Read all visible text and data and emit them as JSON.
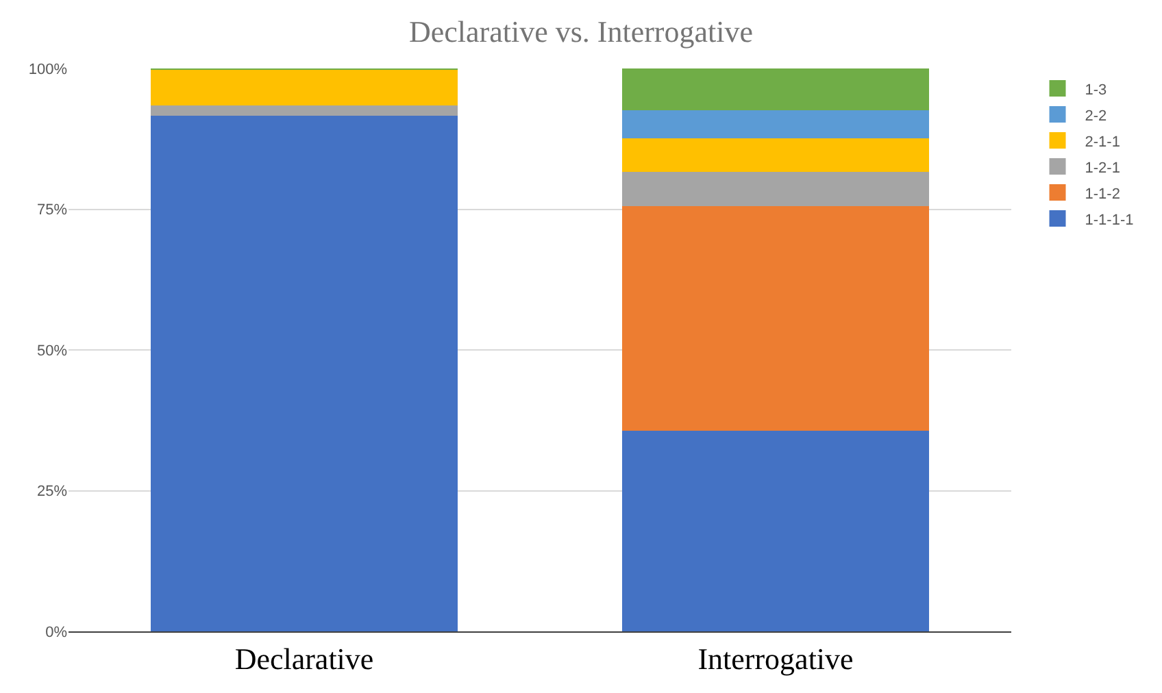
{
  "chart_data": {
    "type": "bar",
    "title": "Declarative vs. Interrogative",
    "stacked": true,
    "categories": [
      "Declarative",
      "Interrogative"
    ],
    "series": [
      {
        "name": "1-1-1-1",
        "color": "#4472c4",
        "values": [
          91.6,
          35.6
        ]
      },
      {
        "name": "1-1-2",
        "color": "#ed7d31",
        "values": [
          0,
          40
        ]
      },
      {
        "name": "1-2-1",
        "color": "#a5a5a5",
        "values": [
          1.8,
          6
        ]
      },
      {
        "name": "2-1-1",
        "color": "#ffc000",
        "values": [
          6.4,
          6
        ]
      },
      {
        "name": "2-2",
        "color": "#5b9bd5",
        "values": [
          0,
          5
        ]
      },
      {
        "name": "1-3",
        "color": "#70ad47",
        "values": [
          0.2,
          7.4
        ]
      }
    ],
    "ylim": [
      0,
      100
    ],
    "yticks": [
      {
        "value": 0,
        "label": "0%"
      },
      {
        "value": 25,
        "label": "25%"
      },
      {
        "value": 50,
        "label": "50%"
      },
      {
        "value": 75,
        "label": "75%"
      },
      {
        "value": 100,
        "label": "100%"
      }
    ],
    "grid": "y",
    "legend": "top right"
  }
}
